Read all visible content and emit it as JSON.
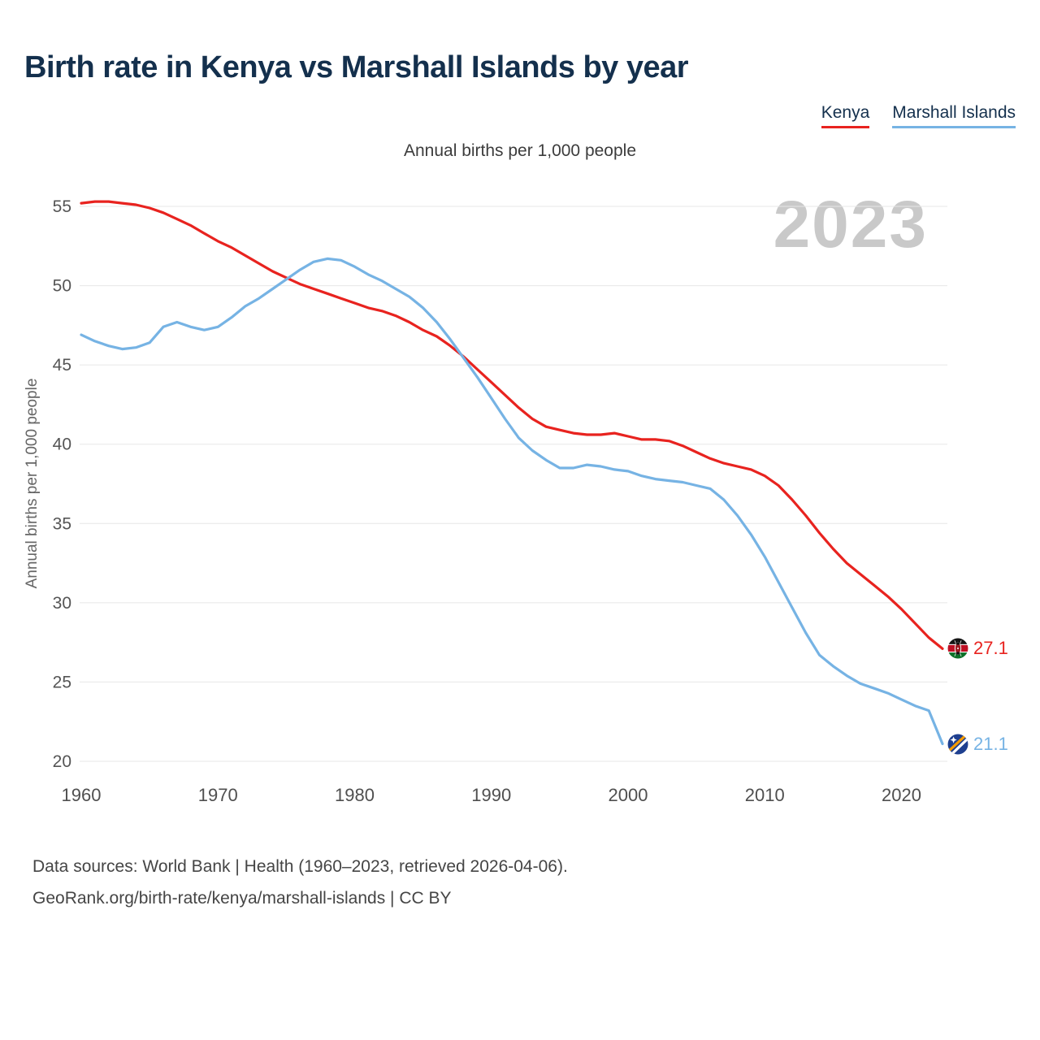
{
  "title": "Birth rate in Kenya vs Marshall Islands by year",
  "subtitle": "Annual births per 1,000 people",
  "watermark": "2023",
  "legend": [
    {
      "label": "Kenya",
      "color": "#e8231f"
    },
    {
      "label": "Marshall Islands",
      "color": "#76b3e4"
    }
  ],
  "footer": {
    "line1": "Data sources: World Bank | Health (1960–2023, retrieved 2026-04-06).",
    "line2": "GeoRank.org/birth-rate/kenya/marshall-islands | CC BY"
  },
  "chart_data": {
    "type": "line",
    "title": "Birth rate in Kenya vs Marshall Islands by year",
    "subtitle": "Annual births per 1,000 people",
    "xlabel": "",
    "ylabel": "Annual births per 1,000 people",
    "ylim": [
      20,
      55
    ],
    "yticks": [
      20,
      25,
      30,
      35,
      40,
      45,
      50,
      55
    ],
    "xticks": [
      1960,
      1970,
      1980,
      1990,
      2000,
      2010,
      2020
    ],
    "grid": "horizontal",
    "legend_position": "top-right",
    "x": [
      1960,
      1961,
      1962,
      1963,
      1964,
      1965,
      1966,
      1967,
      1968,
      1969,
      1970,
      1971,
      1972,
      1973,
      1974,
      1975,
      1976,
      1977,
      1978,
      1979,
      1980,
      1981,
      1982,
      1983,
      1984,
      1985,
      1986,
      1987,
      1988,
      1989,
      1990,
      1991,
      1992,
      1993,
      1994,
      1995,
      1996,
      1997,
      1998,
      1999,
      2000,
      2001,
      2002,
      2003,
      2004,
      2005,
      2006,
      2007,
      2008,
      2009,
      2010,
      2011,
      2012,
      2013,
      2014,
      2015,
      2016,
      2017,
      2018,
      2019,
      2020,
      2021,
      2022,
      2023
    ],
    "series": [
      {
        "name": "Kenya",
        "color": "#e8231f",
        "end_label": "27.1",
        "values": [
          55.2,
          55.3,
          55.3,
          55.2,
          55.1,
          54.9,
          54.6,
          54.2,
          53.8,
          53.3,
          52.8,
          52.4,
          51.9,
          51.4,
          50.9,
          50.5,
          50.1,
          49.8,
          49.5,
          49.2,
          48.9,
          48.6,
          48.4,
          48.1,
          47.7,
          47.2,
          46.8,
          46.2,
          45.5,
          44.7,
          43.9,
          43.1,
          42.3,
          41.6,
          41.1,
          40.9,
          40.7,
          40.6,
          40.6,
          40.7,
          40.5,
          40.3,
          40.3,
          40.2,
          39.9,
          39.5,
          39.1,
          38.8,
          38.6,
          38.4,
          38.0,
          37.4,
          36.5,
          35.5,
          34.4,
          33.4,
          32.5,
          31.8,
          31.1,
          30.4,
          29.6,
          28.7,
          27.8,
          27.1
        ]
      },
      {
        "name": "Marshall Islands",
        "color": "#76b3e4",
        "end_label": "21.1",
        "values": [
          46.9,
          46.5,
          46.2,
          46.0,
          46.1,
          46.4,
          47.4,
          47.7,
          47.4,
          47.2,
          47.4,
          48.0,
          48.7,
          49.2,
          49.8,
          50.4,
          51.0,
          51.5,
          51.7,
          51.6,
          51.2,
          50.7,
          50.3,
          49.8,
          49.3,
          48.6,
          47.7,
          46.6,
          45.4,
          44.2,
          42.9,
          41.6,
          40.4,
          39.6,
          39.0,
          38.5,
          38.5,
          38.7,
          38.6,
          38.4,
          38.3,
          38.0,
          37.8,
          37.7,
          37.6,
          37.4,
          37.2,
          36.5,
          35.5,
          34.3,
          32.9,
          31.3,
          29.7,
          28.1,
          26.7,
          26.0,
          25.4,
          24.9,
          24.6,
          24.3,
          23.9,
          23.5,
          23.2,
          21.1
        ]
      }
    ]
  }
}
